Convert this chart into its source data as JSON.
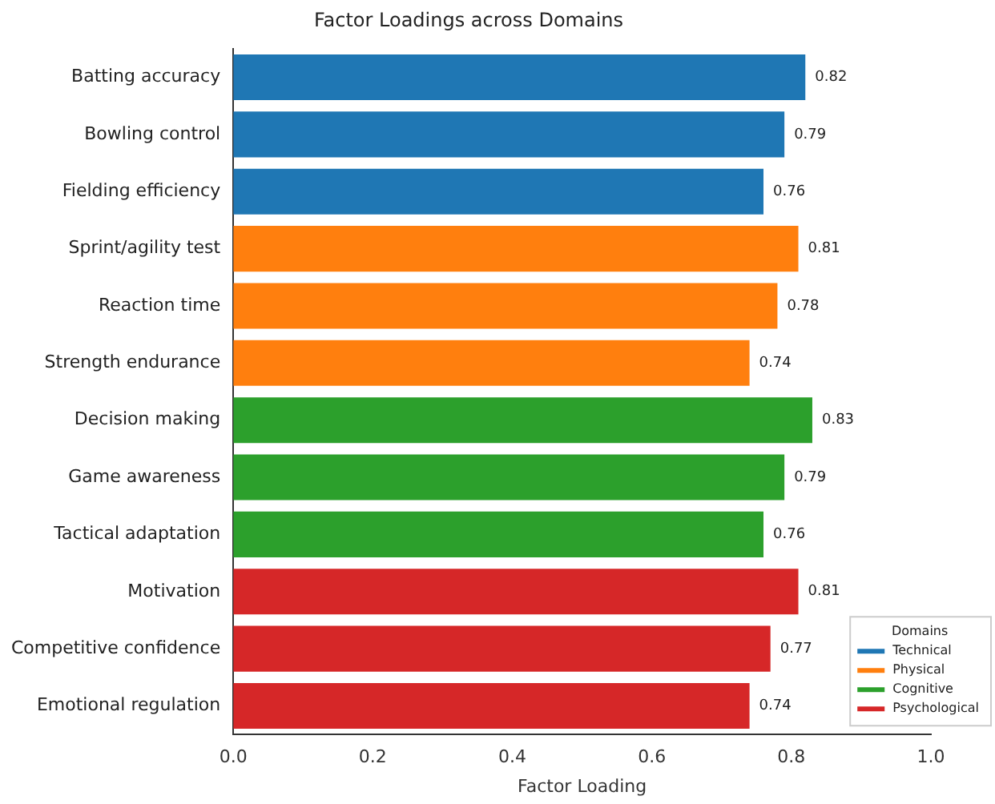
{
  "chart_data": {
    "type": "bar",
    "orientation": "horizontal",
    "title": "Factor Loadings across Domains",
    "xlabel": "Factor Loading",
    "categories": [
      "Batting accuracy",
      "Bowling control",
      "Fielding efficiency",
      "Sprint/agility test",
      "Reaction time",
      "Strength endurance",
      "Decision making",
      "Game awareness",
      "Tactical adaptation",
      "Motivation",
      "Competitive confidence",
      "Emotional regulation"
    ],
    "series": [
      {
        "name": "Technical",
        "color": "#1f77b4",
        "values": [
          0.82,
          0.79,
          0.76,
          null,
          null,
          null,
          null,
          null,
          null,
          null,
          null,
          null
        ]
      },
      {
        "name": "Physical",
        "color": "#ff7f0e",
        "values": [
          null,
          null,
          null,
          0.81,
          0.78,
          0.74,
          null,
          null,
          null,
          null,
          null,
          null
        ]
      },
      {
        "name": "Cognitive",
        "color": "#2ca02c",
        "values": [
          null,
          null,
          null,
          null,
          null,
          null,
          0.83,
          0.79,
          0.76,
          null,
          null,
          null
        ]
      },
      {
        "name": "Psychological",
        "color": "#d62728",
        "values": [
          null,
          null,
          null,
          null,
          null,
          null,
          null,
          null,
          null,
          0.81,
          0.77,
          0.74
        ]
      }
    ],
    "xlim": [
      0,
      1
    ],
    "xticks": [
      {
        "value": 0,
        "label": "0.0"
      },
      {
        "value": 0.2,
        "label": "0.2"
      },
      {
        "value": 0.4,
        "label": "0.4"
      },
      {
        "value": 0.6,
        "label": "0.6"
      },
      {
        "value": 0.8,
        "label": "0.8"
      },
      {
        "value": 1,
        "label": "1.0"
      }
    ],
    "data_labels": true,
    "legend": "bottom right",
    "legend_title": "Domains",
    "grid": false
  }
}
